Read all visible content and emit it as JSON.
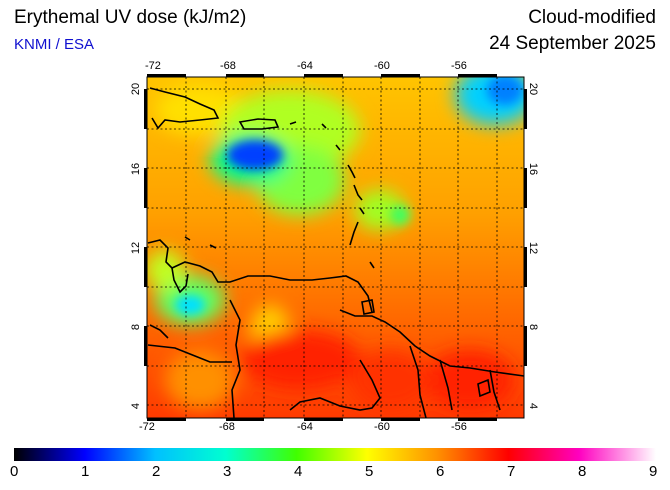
{
  "header": {
    "title": "Erythemal UV dose (kJ/m2)",
    "credit": "KNMI / ESA",
    "product": "Cloud-modified",
    "date": "24 September 2025"
  },
  "map": {
    "lon_ticks": [
      "-72",
      "-68",
      "-64",
      "-60",
      "-56"
    ],
    "lat_ticks": [
      "20",
      "16",
      "12",
      "8",
      "4"
    ]
  },
  "colorbar": {
    "labels": [
      "0",
      "1",
      "2",
      "3",
      "4",
      "5",
      "6",
      "7",
      "8",
      "9"
    ],
    "min": 0,
    "max": 9,
    "colors": [
      "#000000",
      "#0000ff",
      "#00c0ff",
      "#00ffd0",
      "#40ff00",
      "#ffff00",
      "#ff9000",
      "#ff0000",
      "#ff00c0",
      "#ffffff"
    ]
  }
}
